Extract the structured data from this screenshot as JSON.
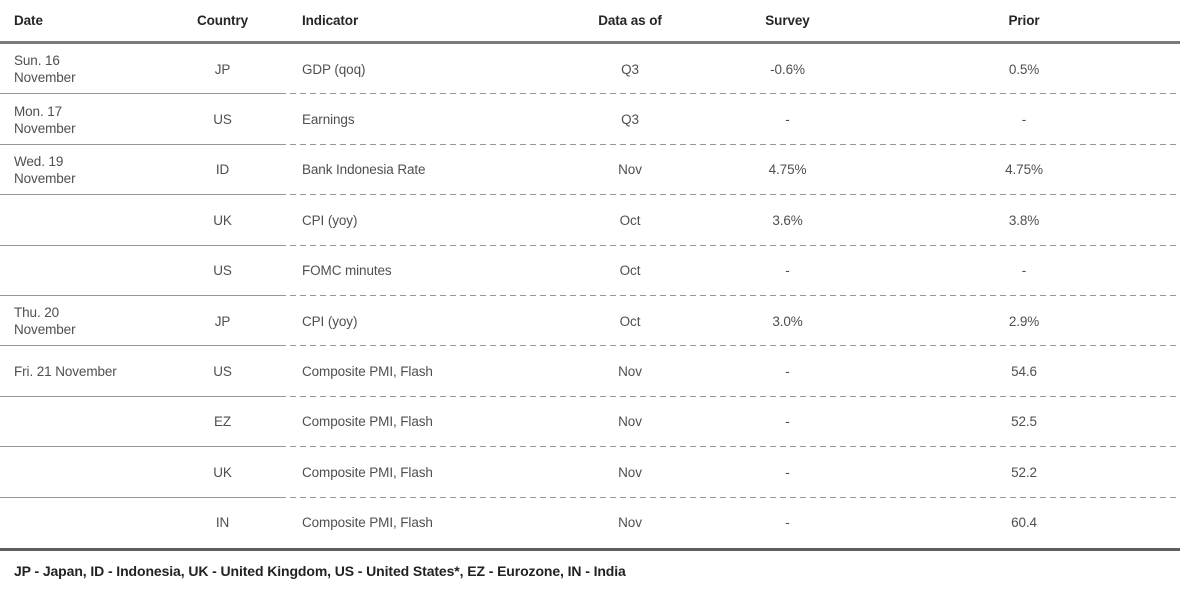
{
  "colors": {
    "header_rule": "#7a7a7a",
    "bottom_rule": "#5e5e5e",
    "row_divider": "#979797",
    "header_text": "#262626",
    "cell_text": "#4f4f4f",
    "footnote_text": "#222222"
  },
  "table": {
    "columns": [
      {
        "key": "date",
        "label": "Date"
      },
      {
        "key": "country",
        "label": "Country"
      },
      {
        "key": "indicator",
        "label": "Indicator"
      },
      {
        "key": "data_as_of",
        "label": "Data as of"
      },
      {
        "key": "survey",
        "label": "Survey"
      },
      {
        "key": "prior",
        "label": "Prior"
      }
    ],
    "rows": [
      {
        "date": "Sun. 16\nNovember",
        "country": "JP",
        "indicator": "GDP (qoq)",
        "data_as_of": "Q3",
        "survey": "-0.6%",
        "prior": "0.5%"
      },
      {
        "date": "Mon. 17\nNovember",
        "country": "US",
        "indicator": "Earnings",
        "data_as_of": "Q3",
        "survey": "-",
        "prior": "-"
      },
      {
        "date": "Wed. 19\nNovember",
        "country": "ID",
        "indicator": "Bank Indonesia Rate",
        "data_as_of": "Nov",
        "survey": "4.75%",
        "prior": "4.75%"
      },
      {
        "date": "",
        "country": "UK",
        "indicator": "CPI (yoy)",
        "data_as_of": "Oct",
        "survey": "3.6%",
        "prior": "3.8%"
      },
      {
        "date": "",
        "country": "US",
        "indicator": "FOMC minutes",
        "data_as_of": "Oct",
        "survey": "-",
        "prior": "-"
      },
      {
        "date": "Thu. 20\nNovember",
        "country": "JP",
        "indicator": "CPI (yoy)",
        "data_as_of": "Oct",
        "survey": "3.0%",
        "prior": "2.9%"
      },
      {
        "date": "Fri. 21 November",
        "country": "US",
        "indicator": "Composite PMI, Flash",
        "data_as_of": "Nov",
        "survey": "-",
        "prior": "54.6"
      },
      {
        "date": "",
        "country": "EZ",
        "indicator": "Composite PMI, Flash",
        "data_as_of": "Nov",
        "survey": "-",
        "prior": "52.5"
      },
      {
        "date": "",
        "country": "UK",
        "indicator": "Composite PMI, Flash",
        "data_as_of": "Nov",
        "survey": "-",
        "prior": "52.2"
      },
      {
        "date": "",
        "country": "IN",
        "indicator": "Composite PMI, Flash",
        "data_as_of": "Nov",
        "survey": "-",
        "prior": "60.4"
      }
    ],
    "footnote": "JP - Japan, ID - Indonesia, UK - United Kingdom, US - United States*, EZ - Eurozone, IN - India"
  }
}
